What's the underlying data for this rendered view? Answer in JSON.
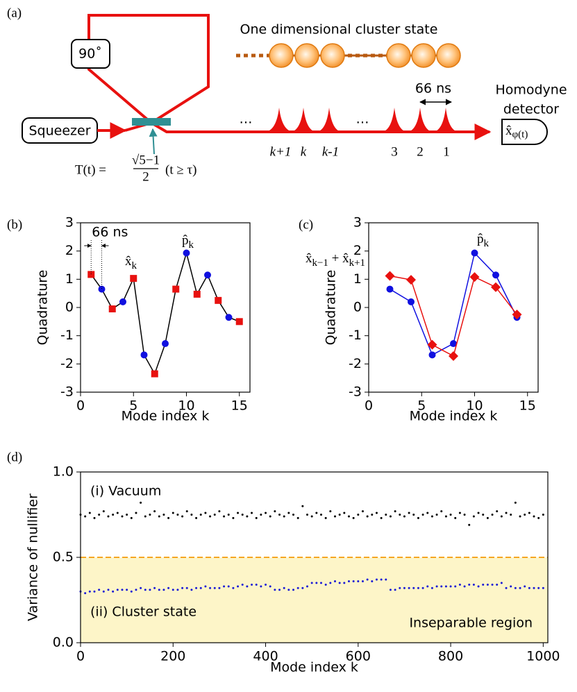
{
  "diagram": {
    "panel_label": "(a)",
    "rotation_label": "90˚",
    "source_label": "Squeezer",
    "cluster_title": "One dimensional cluster state",
    "dots": [
      "…",
      "…"
    ],
    "pulse_labels": [
      "k+1",
      "k",
      "k-1",
      "3",
      "2",
      "1"
    ],
    "spacing_label": "66 ns",
    "detector_label": [
      "Homodyne",
      "detector"
    ],
    "detector_symbol": [
      "x̂",
      "φ(t)"
    ],
    "transmittance": {
      "prefix": "T(t) =",
      "numerator": "√5−1",
      "denominator": "2",
      "suffix": "(t ≥ τ)"
    }
  },
  "chart_data": [
    {
      "type": "line",
      "panel_label": "(b)",
      "xlabel": "Mode index k",
      "ylabel": "Quadrature",
      "xlim": [
        0,
        16
      ],
      "xticks": [
        0,
        5,
        10,
        15
      ],
      "ylim": [
        -3,
        3
      ],
      "yticks": [
        -3,
        -2,
        -1,
        0,
        1,
        2,
        3
      ],
      "connect_color": "#000000",
      "series": [
        {
          "name": [
            "x̂",
            "k"
          ],
          "color": "#e8110f",
          "marker": "square",
          "line": false,
          "x": [
            1,
            3,
            5,
            7,
            9,
            11,
            13,
            15
          ],
          "values": [
            1.17,
            -0.05,
            1.03,
            -2.35,
            0.65,
            0.47,
            0.25,
            -0.5
          ]
        },
        {
          "name": [
            "p̂",
            "k"
          ],
          "color": "#1010e0",
          "marker": "circle",
          "line": false,
          "x": [
            2,
            4,
            6,
            8,
            10,
            12,
            14
          ],
          "values": [
            0.65,
            0.2,
            -1.68,
            -1.28,
            1.93,
            1.15,
            -0.35
          ]
        }
      ],
      "annotations": [
        {
          "text": "66 ns"
        }
      ]
    },
    {
      "type": "line",
      "panel_label": "(c)",
      "xlabel": "Mode index k",
      "ylabel": "Quadrature",
      "xlim": [
        0,
        16
      ],
      "xticks": [
        0,
        5,
        10,
        15
      ],
      "ylim": [
        -3,
        3
      ],
      "yticks": [
        -3,
        -2,
        -1,
        0,
        1,
        2,
        3
      ],
      "series": [
        {
          "name": [
            "p̂",
            "k"
          ],
          "color": "#1010e0",
          "marker": "circle",
          "line": true,
          "x": [
            2,
            4,
            6,
            8,
            10,
            12,
            14
          ],
          "values": [
            0.65,
            0.2,
            -1.68,
            -1.28,
            1.93,
            1.15,
            -0.35
          ]
        },
        {
          "name": [
            "x̂",
            "k−1",
            " + x̂",
            "k+1"
          ],
          "color": "#e8110f",
          "marker": "diamond",
          "line": true,
          "x": [
            2,
            4,
            6,
            8,
            10,
            12,
            14
          ],
          "values": [
            1.12,
            0.98,
            -1.32,
            -1.72,
            1.08,
            0.72,
            -0.25
          ]
        }
      ]
    },
    {
      "type": "scatter",
      "panel_label": "(d)",
      "xlabel": "Mode index k",
      "ylabel": "Variance of nullifier",
      "xlim": [
        0,
        1010
      ],
      "xticks": [
        0,
        200,
        400,
        600,
        800,
        1000
      ],
      "ylim": [
        0,
        1
      ],
      "yticks": [
        {
          "value": 0,
          "label": "0.0"
        },
        {
          "value": 0.5,
          "label": "0.5"
        },
        {
          "value": 1,
          "label": "1.0"
        }
      ],
      "threshold": 0.5,
      "threshold_color": "#f5a623",
      "region_color": "#fdf5c8",
      "region_label": "Inseparable region",
      "x": [
        0,
        10,
        20,
        30,
        40,
        50,
        60,
        70,
        80,
        90,
        100,
        110,
        120,
        130,
        140,
        150,
        160,
        170,
        180,
        190,
        200,
        210,
        220,
        230,
        240,
        250,
        260,
        270,
        280,
        290,
        300,
        310,
        320,
        330,
        340,
        350,
        360,
        370,
        380,
        390,
        400,
        410,
        420,
        430,
        440,
        450,
        460,
        470,
        480,
        490,
        500,
        510,
        520,
        530,
        540,
        550,
        560,
        570,
        580,
        590,
        600,
        610,
        620,
        630,
        640,
        650,
        660,
        670,
        680,
        690,
        700,
        710,
        720,
        730,
        740,
        750,
        760,
        770,
        780,
        790,
        800,
        810,
        820,
        830,
        840,
        850,
        860,
        870,
        880,
        890,
        900,
        910,
        920,
        930,
        940,
        950,
        960,
        970,
        980,
        990,
        1000
      ],
      "series": [
        {
          "name": "(i) Vacuum",
          "color": "#000000",
          "values": [
            0.75,
            0.74,
            0.76,
            0.73,
            0.75,
            0.77,
            0.74,
            0.75,
            0.76,
            0.74,
            0.75,
            0.73,
            0.76,
            0.82,
            0.74,
            0.75,
            0.77,
            0.74,
            0.75,
            0.73,
            0.76,
            0.75,
            0.74,
            0.77,
            0.75,
            0.73,
            0.75,
            0.76,
            0.74,
            0.75,
            0.77,
            0.74,
            0.75,
            0.73,
            0.76,
            0.75,
            0.74,
            0.76,
            0.73,
            0.75,
            0.76,
            0.74,
            0.77,
            0.75,
            0.74,
            0.76,
            0.75,
            0.73,
            0.8,
            0.75,
            0.74,
            0.76,
            0.75,
            0.73,
            0.77,
            0.74,
            0.75,
            0.76,
            0.74,
            0.73,
            0.75,
            0.77,
            0.74,
            0.75,
            0.76,
            0.73,
            0.75,
            0.74,
            0.77,
            0.75,
            0.74,
            0.76,
            0.75,
            0.73,
            0.75,
            0.76,
            0.74,
            0.75,
            0.77,
            0.74,
            0.75,
            0.73,
            0.76,
            0.75,
            0.69,
            0.74,
            0.76,
            0.75,
            0.73,
            0.75,
            0.77,
            0.74,
            0.76,
            0.75,
            0.82,
            0.74,
            0.75,
            0.76,
            0.74,
            0.73,
            0.75
          ]
        },
        {
          "name": "(ii) Cluster state",
          "color": "#1a1ad6",
          "values": [
            0.3,
            0.29,
            0.3,
            0.3,
            0.31,
            0.3,
            0.31,
            0.3,
            0.31,
            0.31,
            0.31,
            0.3,
            0.31,
            0.32,
            0.31,
            0.31,
            0.32,
            0.31,
            0.31,
            0.32,
            0.31,
            0.31,
            0.32,
            0.32,
            0.31,
            0.32,
            0.32,
            0.33,
            0.32,
            0.32,
            0.32,
            0.33,
            0.33,
            0.32,
            0.33,
            0.34,
            0.33,
            0.34,
            0.34,
            0.33,
            0.34,
            0.33,
            0.31,
            0.31,
            0.32,
            0.31,
            0.31,
            0.32,
            0.32,
            0.33,
            0.35,
            0.35,
            0.35,
            0.34,
            0.35,
            0.36,
            0.35,
            0.35,
            0.36,
            0.36,
            0.36,
            0.36,
            0.37,
            0.36,
            0.37,
            0.37,
            0.37,
            0.31,
            0.31,
            0.32,
            0.32,
            0.32,
            0.32,
            0.32,
            0.32,
            0.33,
            0.32,
            0.33,
            0.33,
            0.33,
            0.33,
            0.33,
            0.34,
            0.33,
            0.34,
            0.34,
            0.33,
            0.34,
            0.34,
            0.34,
            0.34,
            0.35,
            0.32,
            0.33,
            0.32,
            0.32,
            0.33,
            0.32,
            0.32,
            0.32,
            0.32
          ]
        }
      ]
    }
  ]
}
